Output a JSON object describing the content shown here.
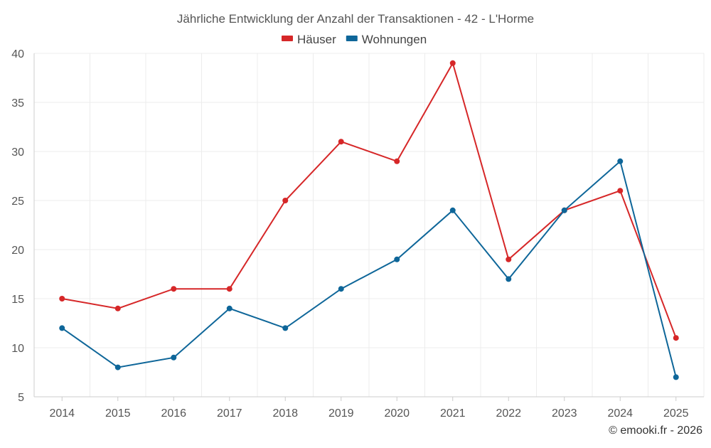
{
  "chart_data": {
    "type": "line",
    "title": "Jährliche Entwicklung der Anzahl der Transaktionen - 42 - L'Horme",
    "categories": [
      "2014",
      "2015",
      "2016",
      "2017",
      "2018",
      "2019",
      "2020",
      "2021",
      "2022",
      "2023",
      "2024",
      "2025"
    ],
    "series": [
      {
        "name": "Häuser",
        "color": "#d62728",
        "values": [
          15,
          14,
          16,
          16,
          25,
          31,
          29,
          39,
          19,
          24,
          26,
          11
        ]
      },
      {
        "name": "Wohnungen",
        "color": "#0e6699",
        "values": [
          12,
          8,
          9,
          14,
          12,
          16,
          19,
          24,
          17,
          24,
          29,
          7
        ]
      }
    ],
    "ylim": [
      5,
      40
    ],
    "yticks": [
      5,
      10,
      15,
      20,
      25,
      30,
      35,
      40
    ],
    "grid": true,
    "legend_position": "top-center",
    "xlabel": "",
    "ylabel": ""
  },
  "credit": "© emooki.fr - 2026"
}
